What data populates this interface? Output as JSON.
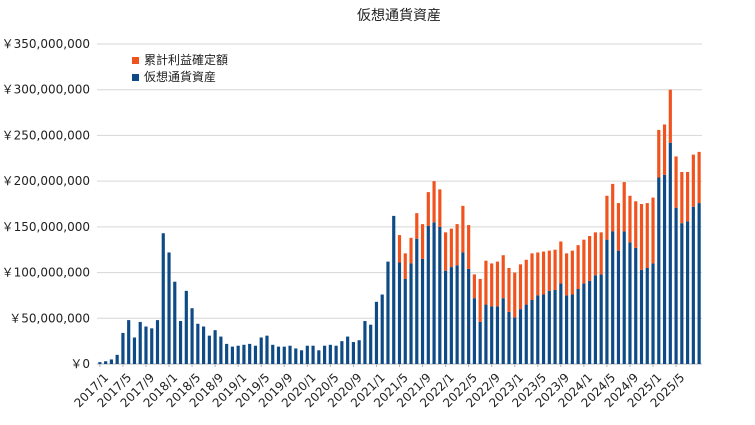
{
  "chart_data": {
    "type": "bar",
    "stacked": true,
    "title": "仮想通貨資産",
    "ylim": [
      0,
      350000000
    ],
    "y_ticks": [
      {
        "value": 0,
        "label": "￥0"
      },
      {
        "value": 50000000,
        "label": "￥50,000,000"
      },
      {
        "value": 100000000,
        "label": "￥100,000,000"
      },
      {
        "value": 150000000,
        "label": "￥150,000,000"
      },
      {
        "value": 200000000,
        "label": "￥200,000,000"
      },
      {
        "value": 250000000,
        "label": "￥250,000,000"
      },
      {
        "value": 300000000,
        "label": "￥300,000,000"
      },
      {
        "value": 350000000,
        "label": "￥350,000,000"
      }
    ],
    "grid": true,
    "legend_position": "top-left",
    "x_start": "2017/1",
    "x_end": "2025/6",
    "x_tick_labels": [
      "2017/1",
      "2017/5",
      "2017/9",
      "2018/1",
      "2018/5",
      "2018/9",
      "2019/1",
      "2019/5",
      "2019/9",
      "2020/1",
      "2020/5",
      "2020/9",
      "2021/1",
      "2021/5",
      "2021/9",
      "2022/1",
      "2022/5",
      "2022/9",
      "2023/1",
      "2023/5",
      "2023/9",
      "2024/1",
      "2024/5",
      "2024/9",
      "2025/1",
      "2025/5"
    ],
    "series": [
      {
        "name": "仮想通貨資産",
        "color": "#0e4a86",
        "values": [
          2000000,
          3000000,
          5000000,
          10000000,
          34000000,
          48000000,
          29000000,
          46000000,
          41000000,
          39000000,
          48000000,
          143000000,
          122000000,
          90000000,
          47000000,
          80000000,
          61000000,
          44000000,
          41000000,
          31000000,
          37000000,
          30000000,
          22000000,
          19000000,
          20000000,
          21000000,
          22000000,
          20000000,
          29000000,
          31000000,
          21000000,
          19000000,
          19000000,
          20000000,
          17000000,
          15000000,
          20000000,
          20000000,
          15000000,
          20000000,
          21000000,
          20000000,
          25000000,
          30000000,
          24000000,
          26000000,
          47000000,
          43000000,
          68000000,
          76000000,
          112000000,
          162000000,
          111000000,
          93000000,
          110000000,
          137000000,
          115000000,
          151000000,
          155000000,
          150000000,
          102000000,
          106000000,
          108000000,
          122000000,
          104000000,
          72000000,
          46000000,
          65000000,
          63000000,
          63000000,
          72000000,
          57000000,
          51000000,
          60000000,
          65000000,
          70000000,
          75000000,
          76000000,
          80000000,
          81000000,
          88000000,
          75000000,
          76000000,
          82000000,
          88000000,
          91000000,
          97000000,
          98000000,
          136000000,
          145000000,
          124000000,
          145000000,
          133000000,
          127000000,
          103000000,
          105000000,
          110000000,
          204000000,
          207000000,
          242000000,
          171000000,
          154000000,
          156000000,
          172000000,
          176000000
        ],
        "extra_values_unknown": []
      },
      {
        "name": "累計利益確定額",
        "color": "#f1531e",
        "values": [
          0,
          0,
          0,
          0,
          0,
          0,
          0,
          0,
          0,
          0,
          0,
          0,
          0,
          0,
          0,
          0,
          0,
          0,
          0,
          0,
          0,
          0,
          0,
          0,
          0,
          0,
          0,
          0,
          0,
          0,
          0,
          0,
          0,
          0,
          0,
          0,
          0,
          0,
          0,
          0,
          0,
          0,
          0,
          0,
          0,
          0,
          0,
          0,
          0,
          0,
          0,
          0,
          30000000,
          28000000,
          28000000,
          28000000,
          38000000,
          37000000,
          45000000,
          41000000,
          42000000,
          42000000,
          45000000,
          51000000,
          48000000,
          26000000,
          47000000,
          48000000,
          47000000,
          49000000,
          47000000,
          48000000,
          49000000,
          49000000,
          49000000,
          51000000,
          47000000,
          47000000,
          44000000,
          44000000,
          46000000,
          46000000,
          48000000,
          48000000,
          48000000,
          49000000,
          47000000,
          46000000,
          48000000,
          52000000,
          52000000,
          54000000,
          51000000,
          51000000,
          72000000,
          71000000,
          72000000,
          52000000,
          55000000,
          58000000,
          56000000,
          56000000,
          54000000,
          57000000,
          56000000
        ]
      }
    ]
  }
}
